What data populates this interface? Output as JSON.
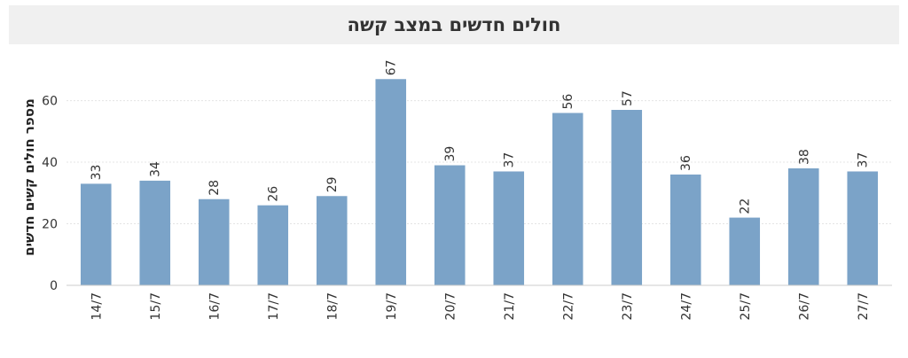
{
  "chart_data": {
    "type": "bar",
    "title": "חולים חדשים במצב קשה",
    "ylabel": "מספר חולים קשים חדשים",
    "xlabel": "",
    "categories": [
      "14/7",
      "15/7",
      "16/7",
      "17/7",
      "18/7",
      "19/7",
      "20/7",
      "21/7",
      "22/7",
      "23/7",
      "24/7",
      "25/7",
      "26/7",
      "27/7"
    ],
    "values": [
      33,
      34,
      28,
      26,
      29,
      67,
      39,
      37,
      56,
      57,
      36,
      22,
      38,
      37
    ],
    "ylim": [
      0,
      76
    ],
    "yticks": [
      0,
      20,
      40,
      60
    ],
    "grid": true,
    "bar_color": "#7ba3c8"
  }
}
